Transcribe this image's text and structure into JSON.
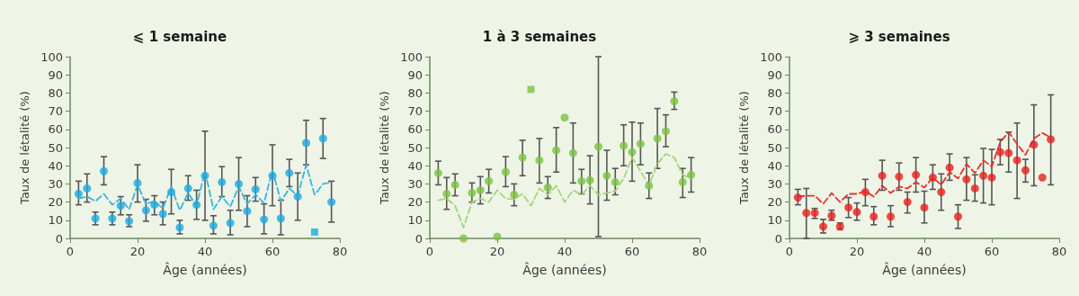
{
  "chart_data": [
    {
      "type": "scatter",
      "title": "⩽ 1 semaine",
      "xlabel": "Âge (années)",
      "ylabel": "Taux de létalité (%)",
      "xlim": [
        0,
        80
      ],
      "xticks": [
        0,
        20,
        40,
        60,
        80
      ],
      "ylim": [
        0,
        100
      ],
      "yticks": [
        0,
        10,
        20,
        30,
        40,
        50,
        60,
        70,
        80,
        90,
        100
      ],
      "grid": false,
      "series": [
        {
          "marker": "circle",
          "color": "#1ba9e0",
          "x": [
            2.5,
            5,
            7.5,
            10,
            12.5,
            15,
            17.5,
            20,
            22.5,
            25,
            27.5,
            30,
            32.5,
            35,
            37.5,
            40,
            42.5,
            45,
            47.5,
            50,
            52.5,
            55,
            57.5,
            60,
            62.5,
            65,
            67.5,
            70,
            75,
            77.5
          ],
          "values": [
            24.5,
            27.5,
            11,
            37,
            11,
            18,
            9.5,
            30.5,
            15.5,
            18.5,
            13.5,
            25.5,
            6,
            27.5,
            18.5,
            34.5,
            7,
            31,
            8.5,
            30,
            15,
            27,
            10.5,
            34.5,
            11,
            36,
            23,
            52.5,
            55,
            20
          ],
          "errors": [
            [
              18.5,
              31.5
            ],
            [
              20,
              35.5
            ],
            [
              7.5,
              14.5
            ],
            [
              29.5,
              45
            ],
            [
              7.5,
              14.5
            ],
            [
              13,
              23
            ],
            [
              6.5,
              13
            ],
            [
              20,
              40.5
            ],
            [
              9.5,
              21.5
            ],
            [
              13,
              23.5
            ],
            [
              7.5,
              20
            ],
            [
              13.5,
              38
            ],
            [
              2.5,
              10
            ],
            [
              21,
              34.5
            ],
            [
              10.5,
              26.5
            ],
            [
              10,
              59
            ],
            [
              2.5,
              12.5
            ],
            [
              23,
              39.5
            ],
            [
              2,
              15.5
            ],
            [
              15.5,
              44.5
            ],
            [
              6.5,
              23.5
            ],
            [
              20.5,
              33.5
            ],
            [
              2.5,
              19
            ],
            [
              18,
              51.5
            ],
            [
              2,
              21
            ],
            [
              28.5,
              43.5
            ],
            [
              10,
              36
            ],
            [
              40.5,
              65
            ],
            [
              44,
              66
            ],
            [
              9,
              31.5
            ]
          ]
        },
        {
          "marker": "square",
          "color": "#1ba9e0",
          "x": [
            72.5
          ],
          "values": [
            3.5
          ]
        },
        {
          "type": "line",
          "marker": "none",
          "line_style": "dashed",
          "color": "#3ab4e4",
          "x": [
            2.5,
            5,
            7.5,
            10,
            12.5,
            15,
            17.5,
            20,
            22.5,
            25,
            27.5,
            30,
            32.5,
            35,
            37.5,
            40,
            42.5,
            45,
            47.5,
            50,
            52.5,
            55,
            57.5,
            60,
            62.5,
            65,
            67.5,
            70,
            72.5,
            75,
            77.5
          ],
          "values": [
            22,
            23,
            20.5,
            24.5,
            18.5,
            22,
            16,
            29.5,
            19,
            20.5,
            16.5,
            28.5,
            15.5,
            25,
            18,
            37,
            16,
            23,
            17.5,
            28.5,
            19,
            24,
            19.5,
            37.5,
            20.5,
            27.5,
            23.5,
            40.5,
            24,
            30,
            31
          ]
        }
      ]
    },
    {
      "type": "scatter",
      "title": "1 à 3 semaines",
      "xlabel": "Âge (années)",
      "ylabel": "Taux de létalité (%)",
      "xlim": [
        0,
        80
      ],
      "xticks": [
        0,
        20,
        40,
        60,
        80
      ],
      "ylim": [
        0,
        100
      ],
      "yticks": [
        0,
        10,
        20,
        30,
        40,
        50,
        60,
        70,
        80,
        90,
        100
      ],
      "grid": false,
      "series": [
        {
          "marker": "circle",
          "color": "#7dc243",
          "x": [
            2.5,
            5,
            7.5,
            10,
            12.5,
            15,
            17.5,
            20,
            22.5,
            25,
            27.5,
            32.5,
            35,
            37.5,
            40,
            42.5,
            45,
            47.5,
            50,
            52.5,
            55,
            57.5,
            60,
            62.5,
            65,
            67.5,
            70,
            72.5,
            75,
            77.5
          ],
          "values": [
            36,
            24.5,
            29.5,
            0,
            25,
            26.5,
            31.5,
            1,
            36.5,
            24,
            44.5,
            43,
            28,
            48.5,
            66.5,
            47,
            31.5,
            32,
            50.5,
            34.5,
            31,
            51,
            47.5,
            52,
            29,
            55,
            59,
            75.5,
            31,
            35
          ],
          "errors": [
            [
              29.5,
              42.5
            ],
            [
              16,
              33.5
            ],
            [
              23.5,
              35.5
            ],
            null,
            [
              20,
              30.5
            ],
            [
              19,
              34
            ],
            [
              25,
              38
            ],
            null,
            [
              28.5,
              45
            ],
            [
              18,
              30
            ],
            [
              34.5,
              54
            ],
            [
              30.5,
              55
            ],
            [
              22,
              34
            ],
            [
              36.5,
              61
            ],
            null,
            [
              30.5,
              63.5
            ],
            [
              24.5,
              38
            ],
            [
              19,
              45.5
            ],
            [
              1,
              100
            ],
            [
              21,
              48.5
            ],
            [
              24,
              38.5
            ],
            [
              40,
              62.5
            ],
            [
              31.5,
              64
            ],
            [
              40.5,
              63.5
            ],
            [
              22,
              36
            ],
            [
              38.5,
              71.5
            ],
            [
              50.5,
              68
            ],
            [
              71,
              80.5
            ],
            [
              22.5,
              38.5
            ],
            [
              25.5,
              44.5
            ]
          ]
        },
        {
          "marker": "square",
          "color": "#7dc243",
          "x": [
            30
          ],
          "values": [
            82
          ]
        },
        {
          "type": "line",
          "marker": "none",
          "line_style": "dashed",
          "color": "#a5d47a",
          "x": [
            2.5,
            5,
            7.5,
            10,
            12.5,
            15,
            17.5,
            20,
            22.5,
            25,
            27.5,
            30,
            32.5,
            35,
            37.5,
            40,
            42.5,
            45,
            47.5,
            50,
            52.5,
            55,
            57.5,
            60,
            62.5,
            65,
            67.5,
            70,
            72.5,
            75,
            77.5
          ],
          "values": [
            21,
            22,
            18,
            6,
            20,
            22,
            20,
            26.5,
            22,
            21.5,
            24.5,
            18,
            27.5,
            24,
            29,
            20,
            26.5,
            24,
            29,
            24,
            25,
            26,
            33,
            44.5,
            37,
            29,
            41,
            46.5,
            44.5,
            35,
            33
          ]
        }
      ]
    },
    {
      "type": "scatter",
      "title": "⩾ 3 semaines",
      "xlabel": "Âge (années)",
      "ylabel": "Taux de létalité (%)",
      "xlim": [
        0,
        80
      ],
      "xticks": [
        0,
        20,
        40,
        60,
        80
      ],
      "ylim": [
        0,
        100
      ],
      "yticks": [
        0,
        10,
        20,
        30,
        40,
        50,
        60,
        70,
        80,
        90,
        100
      ],
      "grid": false,
      "series": [
        {
          "marker": "circle",
          "color": "#e8201e",
          "x": [
            2.5,
            5,
            7.5,
            10,
            12.5,
            15,
            17.5,
            20,
            22.5,
            25,
            27.5,
            30,
            32.5,
            35,
            37.5,
            40,
            42.5,
            45,
            47.5,
            50,
            52.5,
            55,
            57.5,
            60,
            62.5,
            65,
            67.5,
            70,
            72.5,
            75,
            77.5
          ],
          "values": [
            22.5,
            14,
            14,
            6.5,
            12.5,
            6.5,
            17,
            14.5,
            25.5,
            12,
            34.5,
            12,
            34,
            20,
            35,
            17,
            33.5,
            25.5,
            39,
            12,
            32.5,
            27.5,
            34.5,
            33.5,
            47.5,
            47,
            43,
            37.5,
            51.5,
            33.5,
            54.5
          ],
          "errors": [
            [
              18.5,
              27
            ],
            [
              0,
              27.5
            ],
            [
              11,
              16.5
            ],
            [
              3,
              10.5
            ],
            [
              10,
              15.5
            ],
            [
              5,
              8.5
            ],
            [
              11.5,
              22.5
            ],
            [
              10,
              19.5
            ],
            [
              18,
              32.5
            ],
            [
              7.5,
              17.5
            ],
            [
              26.5,
              43
            ],
            [
              6.5,
              18
            ],
            [
              26.5,
              41.5
            ],
            [
              14,
              25.5
            ],
            [
              25.5,
              44.5
            ],
            [
              8.5,
              26
            ],
            [
              27,
              40.5
            ],
            [
              15.5,
              35.5
            ],
            [
              32,
              46.5
            ],
            [
              5.5,
              18.5
            ],
            [
              21,
              44.5
            ],
            [
              20.5,
              35
            ],
            [
              19.5,
              49.5
            ],
            [
              18.5,
              49
            ],
            [
              40.5,
              54.5
            ],
            [
              36.5,
              58.5
            ],
            [
              22,
              63.5
            ],
            [
              31,
              43.5
            ],
            [
              29,
              73.5
            ],
            null,
            [
              29.5,
              79
            ]
          ]
        },
        {
          "type": "line",
          "marker": "none",
          "line_style": "dashed",
          "color": "#e83030",
          "x": [
            2.5,
            5,
            7.5,
            10,
            12.5,
            15,
            17.5,
            20,
            22.5,
            25,
            27.5,
            30,
            32.5,
            35,
            37.5,
            40,
            42.5,
            45,
            47.5,
            50,
            52.5,
            55,
            57.5,
            60,
            62.5,
            65,
            67.5,
            70,
            72.5,
            75,
            77.5
          ],
          "values": [
            23,
            23.5,
            23.5,
            19,
            25,
            20,
            24.5,
            24.5,
            26,
            23,
            29,
            25,
            28.5,
            27.5,
            31,
            28,
            33.5,
            29.5,
            36.5,
            33,
            41,
            36,
            43,
            39.5,
            53,
            58.5,
            52,
            46,
            55,
            58,
            55.5
          ]
        }
      ]
    }
  ]
}
